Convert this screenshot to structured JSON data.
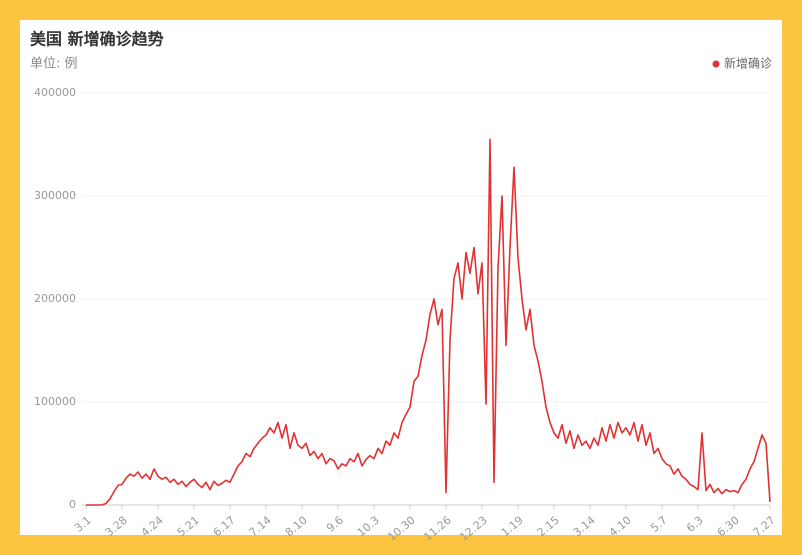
{
  "chart_data": {
    "type": "line",
    "title": "美国 新增确诊趋势",
    "unit_label": "单位: 例",
    "legend": "top-right",
    "grid": true,
    "ylim": [
      0,
      400000
    ],
    "yticks": [
      0,
      100000,
      200000,
      300000,
      400000
    ],
    "categories": [
      "3.1",
      null,
      null,
      null,
      null,
      null,
      null,
      null,
      null,
      "3.28",
      null,
      null,
      null,
      null,
      null,
      null,
      null,
      null,
      "4.24",
      null,
      null,
      null,
      null,
      null,
      null,
      null,
      null,
      "5.21",
      null,
      null,
      null,
      null,
      null,
      null,
      null,
      null,
      "6.17",
      null,
      null,
      null,
      null,
      null,
      null,
      null,
      null,
      "7.14",
      null,
      null,
      null,
      null,
      null,
      null,
      null,
      null,
      "8.10",
      null,
      null,
      null,
      null,
      null,
      null,
      null,
      null,
      "9.6",
      null,
      null,
      null,
      null,
      null,
      null,
      null,
      null,
      "10.3",
      null,
      null,
      null,
      null,
      null,
      null,
      null,
      null,
      "10.30",
      null,
      null,
      null,
      null,
      null,
      null,
      null,
      null,
      "11.26",
      null,
      null,
      null,
      null,
      null,
      null,
      null,
      null,
      "12.23",
      null,
      null,
      null,
      null,
      null,
      null,
      null,
      null,
      "1.19",
      null,
      null,
      null,
      null,
      null,
      null,
      null,
      null,
      "2.15",
      null,
      null,
      null,
      null,
      null,
      null,
      null,
      null,
      "3.14",
      null,
      null,
      null,
      null,
      null,
      null,
      null,
      null,
      "4.10",
      null,
      null,
      null,
      null,
      null,
      null,
      null,
      null,
      "5.7",
      null,
      null,
      null,
      null,
      null,
      null,
      null,
      null,
      "6.3",
      null,
      null,
      null,
      null,
      null,
      null,
      null,
      null,
      "6.30",
      null,
      null,
      null,
      null,
      null,
      null,
      null,
      null,
      "7.27"
    ],
    "series": [
      {
        "name": "新增确诊",
        "color": "#e03232",
        "values": [
          0,
          0,
          0,
          0,
          100,
          1500,
          6000,
          13000,
          19000,
          20000,
          26000,
          30000,
          28000,
          32000,
          26000,
          30000,
          25000,
          35000,
          28000,
          25000,
          27000,
          22000,
          25000,
          20000,
          23000,
          18000,
          22000,
          25000,
          20000,
          17000,
          22000,
          15000,
          23000,
          19000,
          21000,
          24000,
          22000,
          30000,
          38000,
          42000,
          50000,
          47000,
          55000,
          60000,
          65000,
          68000,
          75000,
          70000,
          80000,
          65000,
          78000,
          55000,
          70000,
          58000,
          55000,
          60000,
          48000,
          52000,
          45000,
          50000,
          40000,
          45000,
          43000,
          35000,
          40000,
          38000,
          45000,
          42000,
          50000,
          38000,
          44000,
          48000,
          45000,
          55000,
          50000,
          62000,
          58000,
          70000,
          65000,
          80000,
          88000,
          95000,
          120000,
          125000,
          145000,
          160000,
          185000,
          200000,
          175000,
          190000,
          12000,
          160000,
          220000,
          235000,
          200000,
          245000,
          225000,
          250000,
          205000,
          235000,
          98000,
          355000,
          22000,
          230000,
          300000,
          155000,
          250000,
          328000,
          240000,
          200000,
          170000,
          190000,
          155000,
          140000,
          120000,
          95000,
          80000,
          70000,
          65000,
          78000,
          60000,
          72000,
          55000,
          68000,
          58000,
          62000,
          55000,
          65000,
          58000,
          75000,
          62000,
          78000,
          65000,
          80000,
          70000,
          75000,
          68000,
          80000,
          62000,
          78000,
          58000,
          70000,
          50000,
          55000,
          45000,
          40000,
          38000,
          30000,
          35000,
          28000,
          25000,
          20000,
          18000,
          15000,
          70000,
          14000,
          20000,
          12000,
          16000,
          11000,
          15000,
          13000,
          14000,
          12000,
          20000,
          25000,
          35000,
          42000,
          55000,
          68000,
          60000,
          3000
        ]
      }
    ]
  }
}
